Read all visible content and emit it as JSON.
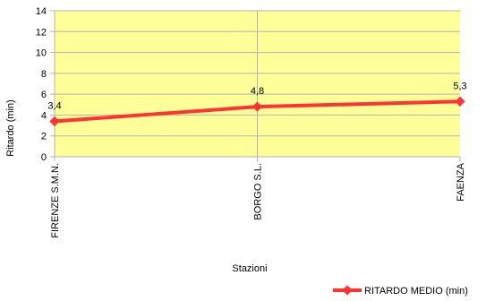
{
  "chart_data": {
    "type": "line",
    "title": "",
    "xlabel": "Stazioni",
    "ylabel": "Ritardo (min)",
    "categories": [
      "FIRENZE S.M.N.",
      "BORGO S.L.",
      "FAENZA"
    ],
    "ylim": [
      0,
      14
    ],
    "yticks": [
      0,
      2,
      4,
      6,
      8,
      10,
      12,
      14
    ],
    "grid": true,
    "legend_position": "bottom-right",
    "plot_background": "#ffff99",
    "series": [
      {
        "name": "RITARDO MEDIO (min)",
        "color": "#ff3333",
        "values": [
          3.4,
          4.8,
          5.3
        ],
        "labels": [
          "3,4",
          "4,8",
          "5,3"
        ]
      }
    ]
  }
}
